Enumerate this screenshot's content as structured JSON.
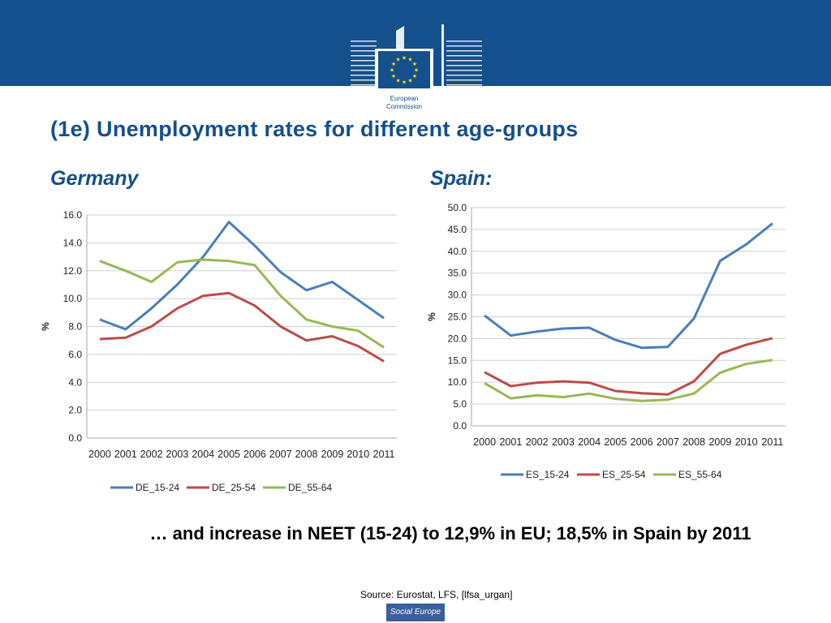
{
  "header": {
    "logo_text": [
      "European",
      "Commission"
    ],
    "title": "(1e) Unemployment rates for different age-groups"
  },
  "colors": {
    "brand_blue": "#14508c",
    "series_15_24": "#4a7ebb",
    "series_25_54": "#be4b48",
    "series_55_64": "#98b954"
  },
  "chart_data": [
    {
      "type": "line",
      "heading": "Germany",
      "ylabel": "%",
      "xlabel": "",
      "ylim": [
        0,
        16
      ],
      "yticks": [
        "0.0",
        "2.0",
        "4.0",
        "6.0",
        "8.0",
        "10.0",
        "12.0",
        "14.0",
        "16.0"
      ],
      "ytick_values": [
        0,
        2,
        4,
        6,
        8,
        10,
        12,
        14,
        16
      ],
      "categories": [
        "2000",
        "2001",
        "2002",
        "2003",
        "2004",
        "2005",
        "2006",
        "2007",
        "2008",
        "2009",
        "2010",
        "2011"
      ],
      "grid": true,
      "legend_position": "bottom",
      "series": [
        {
          "name": "DE_15-24",
          "color": "#4a7ebb",
          "values": [
            8.5,
            7.8,
            9.3,
            11.0,
            13.0,
            15.5,
            13.8,
            11.9,
            10.6,
            11.2,
            9.9,
            8.6
          ]
        },
        {
          "name": "DE_25-54",
          "color": "#be4b48",
          "values": [
            7.1,
            7.2,
            8.0,
            9.3,
            10.2,
            10.4,
            9.5,
            8.0,
            7.0,
            7.3,
            6.6,
            5.5
          ]
        },
        {
          "name": "DE_55-64",
          "color": "#98b954",
          "values": [
            12.7,
            12.0,
            11.2,
            12.6,
            12.8,
            12.7,
            12.4,
            10.2,
            8.5,
            8.0,
            7.7,
            6.5
          ]
        }
      ]
    },
    {
      "type": "line",
      "heading": "Spain:",
      "ylabel": "%",
      "xlabel": "",
      "ylim": [
        0,
        50
      ],
      "yticks": [
        "0.0",
        "5.0",
        "10.0",
        "15.0",
        "20.0",
        "25.0",
        "30.0",
        "35.0",
        "40.0",
        "45.0",
        "50.0"
      ],
      "ytick_values": [
        0,
        5,
        10,
        15,
        20,
        25,
        30,
        35,
        40,
        45,
        50
      ],
      "categories": [
        "2000",
        "2001",
        "2002",
        "2003",
        "2004",
        "2005",
        "2006",
        "2007",
        "2008",
        "2009",
        "2010",
        "2011"
      ],
      "grid": true,
      "legend_position": "bottom",
      "series": [
        {
          "name": "ES_15-24",
          "color": "#4a7ebb",
          "values": [
            25.3,
            20.7,
            21.6,
            22.3,
            22.5,
            19.7,
            17.9,
            18.1,
            24.6,
            37.8,
            41.6,
            46.4
          ]
        },
        {
          "name": "ES_25-54",
          "color": "#be4b48",
          "values": [
            12.3,
            9.1,
            9.9,
            10.2,
            9.9,
            8.0,
            7.5,
            7.2,
            10.2,
            16.5,
            18.6,
            20.1
          ]
        },
        {
          "name": "ES_55-64",
          "color": "#98b954",
          "values": [
            9.8,
            6.3,
            7.0,
            6.6,
            7.4,
            6.2,
            5.7,
            6.0,
            7.4,
            12.2,
            14.2,
            15.1
          ]
        }
      ]
    }
  ],
  "footer": {
    "note": "… and increase in NEET (15-24) to 12,9% in EU; 18,5% in Spain by 2011",
    "source": "Source: Eurostat, LFS, [lfsa_urgan]",
    "badge": "Social Europe"
  }
}
